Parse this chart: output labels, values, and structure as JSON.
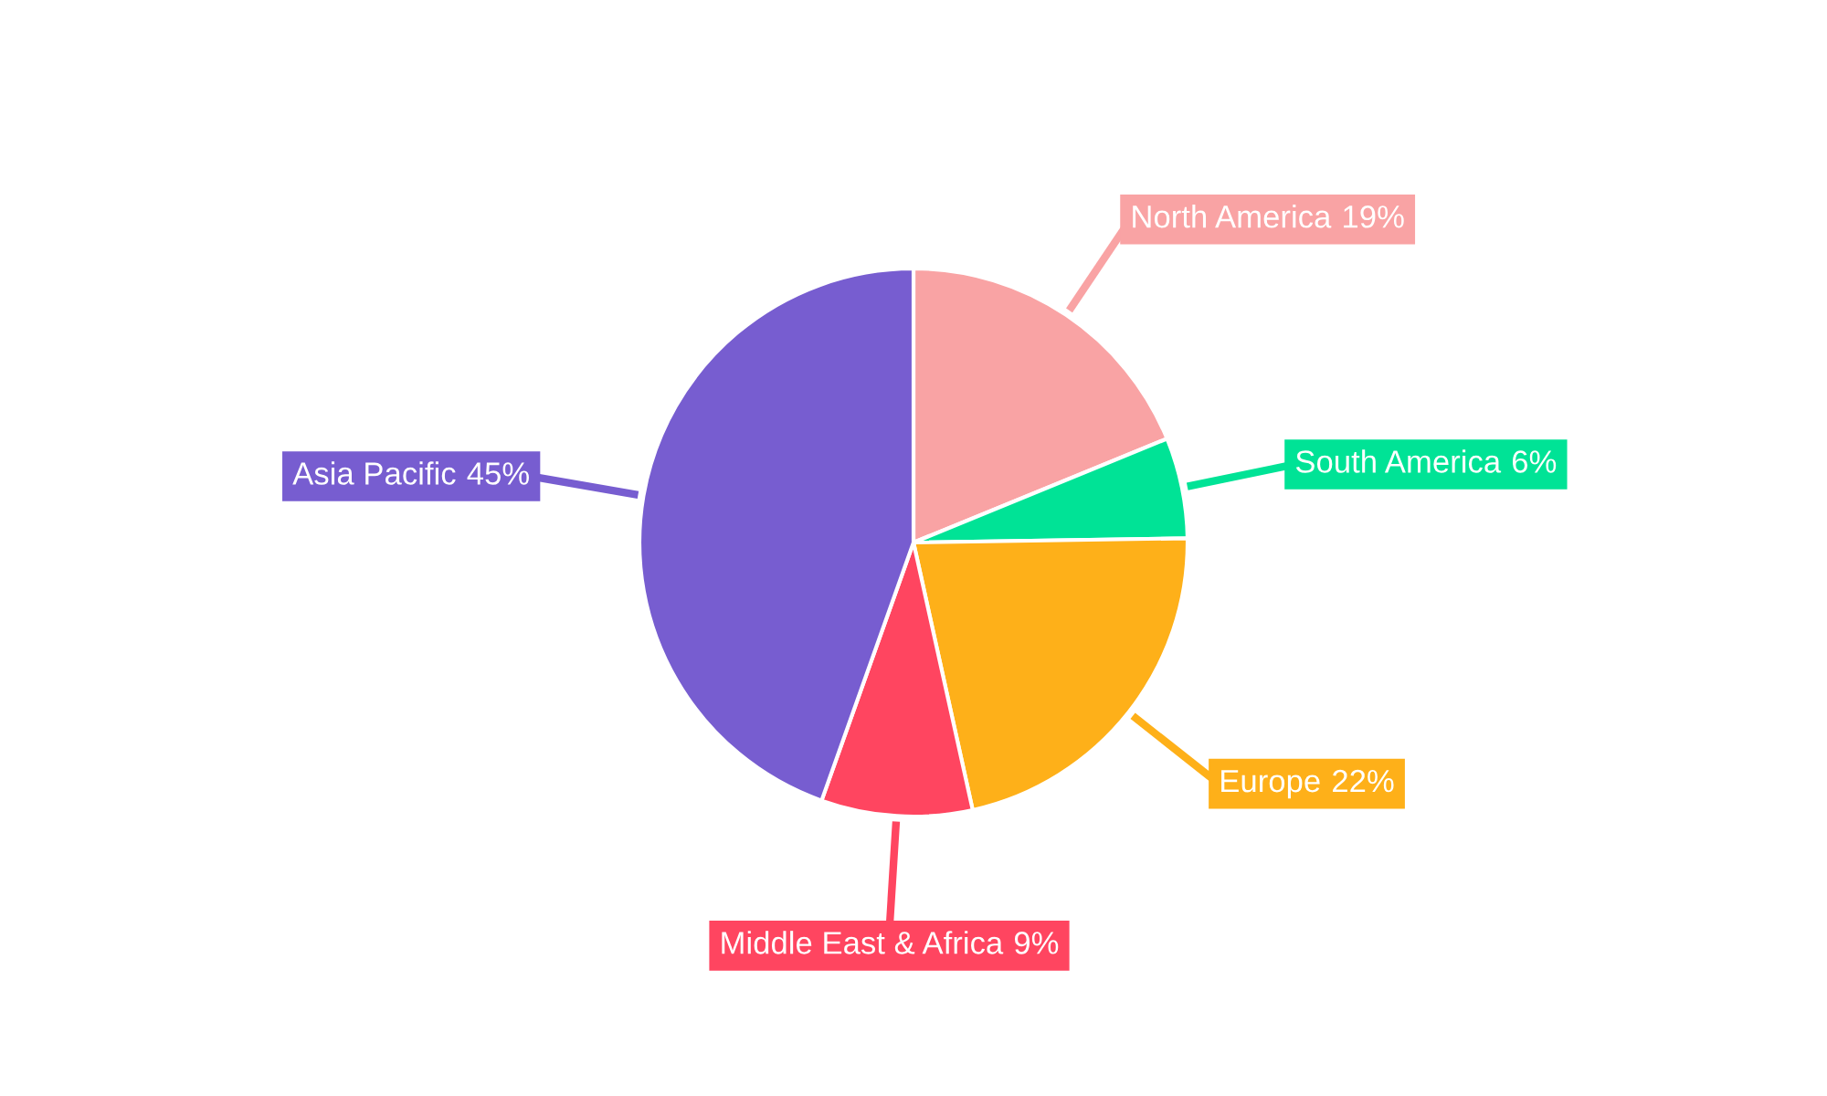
{
  "chart_data": {
    "type": "pie",
    "categories": [
      "North America",
      "South America",
      "Europe",
      "Middle East & Africa",
      "Asia Pacific"
    ],
    "values": [
      19,
      6,
      22,
      9,
      45
    ],
    "colors": [
      "#f9a3a4",
      "#00e396",
      "#feb019",
      "#ff4560",
      "#775dd0"
    ],
    "value_labels": [
      "19%",
      "6%",
      "22%",
      "9%",
      "45%"
    ]
  }
}
